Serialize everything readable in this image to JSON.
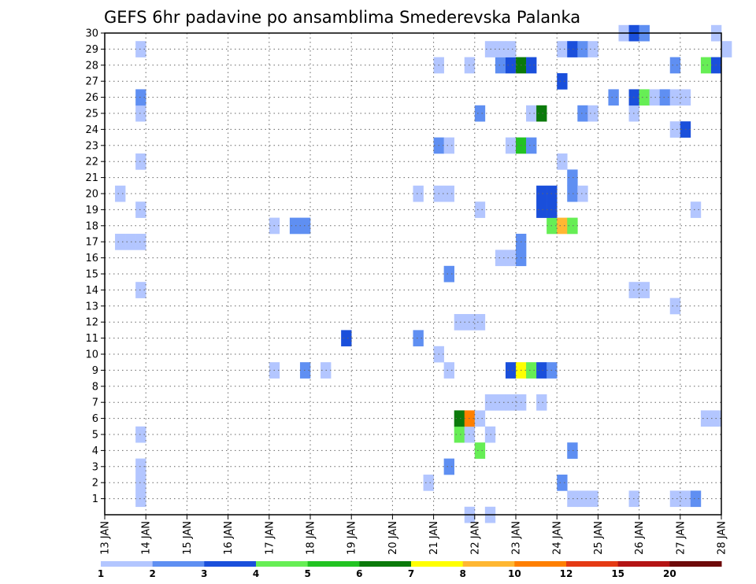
{
  "chart_data": {
    "type": "heatmap",
    "title": "GEFS 6hr padavine po ansamblima Smederevska Palanka",
    "xlabel": "",
    "ylabel": "",
    "x_ticks": [
      "13 JAN",
      "14 JAN",
      "15 JAN",
      "16 JAN",
      "17 JAN",
      "18 JAN",
      "19 JAN",
      "20 JAN",
      "21 JAN",
      "22 JAN",
      "23 JAN",
      "24 JAN",
      "25 JAN",
      "26 JAN",
      "27 JAN",
      "28 JAN"
    ],
    "y_ticks": [
      "1",
      "2",
      "3",
      "4",
      "5",
      "6",
      "7",
      "8",
      "9",
      "10",
      "11",
      "12",
      "13",
      "14",
      "15",
      "16",
      "17",
      "18",
      "19",
      "20",
      "21",
      "22",
      "23",
      "24",
      "25",
      "26",
      "27",
      "28",
      "29",
      "30"
    ],
    "ylim": [
      0,
      30
    ],
    "xlim_days": [
      0,
      15
    ],
    "colorbar": {
      "labels": [
        "1",
        "2",
        "3",
        "4",
        "5",
        "6",
        "7",
        "8",
        "10",
        "12",
        "15",
        "20"
      ],
      "colors": [
        "#b3c6ff",
        "#5f8ff2",
        "#1a4fdb",
        "#66ee55",
        "#22c322",
        "#0b7a0b",
        "#ffff00",
        "#ffb732",
        "#ff7f00",
        "#e53a14",
        "#b41414",
        "#6e0a0a"
      ]
    },
    "cells": [
      {
        "m": 1,
        "d": 0.75,
        "c": 0
      },
      {
        "m": 1,
        "d": 11.25,
        "c": 0
      },
      {
        "m": 1,
        "d": 11.5,
        "c": 0
      },
      {
        "m": 1,
        "d": 11.75,
        "c": 0
      },
      {
        "m": 1,
        "d": 12.75,
        "c": 0
      },
      {
        "m": 1,
        "d": 13.75,
        "c": 0
      },
      {
        "m": 1,
        "d": 14,
        "c": 0
      },
      {
        "m": 1,
        "d": 14.25,
        "c": 1
      },
      {
        "m": 2,
        "d": 0.75,
        "c": 0
      },
      {
        "m": 2,
        "d": 7.75,
        "c": 0
      },
      {
        "m": 2,
        "d": 11.0,
        "c": 1
      },
      {
        "m": 3,
        "d": 0.75,
        "c": 0
      },
      {
        "m": 3,
        "d": 8.25,
        "c": 1
      },
      {
        "m": 4,
        "d": 9.0,
        "c": 3
      },
      {
        "m": 4,
        "d": 11.25,
        "c": 1
      },
      {
        "m": 5,
        "d": 0.75,
        "c": 0
      },
      {
        "m": 5,
        "d": 8.5,
        "c": 3
      },
      {
        "m": 5,
        "d": 8.75,
        "c": 0
      },
      {
        "m": 5,
        "d": 9.25,
        "c": 0
      },
      {
        "m": 6,
        "d": 8.5,
        "c": 5
      },
      {
        "m": 6,
        "d": 8.75,
        "c": 8
      },
      {
        "m": 6,
        "d": 9.0,
        "c": 0
      },
      {
        "m": 6,
        "d": 14.5,
        "c": 0
      },
      {
        "m": 6,
        "d": 14.75,
        "c": 0
      },
      {
        "m": 7,
        "d": 9.25,
        "c": 0
      },
      {
        "m": 7,
        "d": 9.5,
        "c": 0
      },
      {
        "m": 7,
        "d": 9.75,
        "c": 0
      },
      {
        "m": 7,
        "d": 10.0,
        "c": 0
      },
      {
        "m": 7,
        "d": 10.5,
        "c": 0
      },
      {
        "m": 9,
        "d": 4.0,
        "c": 0
      },
      {
        "m": 9,
        "d": 4.75,
        "c": 1
      },
      {
        "m": 9,
        "d": 5.25,
        "c": 0
      },
      {
        "m": 9,
        "d": 8.25,
        "c": 0
      },
      {
        "m": 9,
        "d": 9.75,
        "c": 2
      },
      {
        "m": 9,
        "d": 10.0,
        "c": 6
      },
      {
        "m": 9,
        "d": 10.25,
        "c": 3
      },
      {
        "m": 9,
        "d": 10.5,
        "c": 2
      },
      {
        "m": 9,
        "d": 10.75,
        "c": 1
      },
      {
        "m": 10,
        "d": 8.0,
        "c": 0
      },
      {
        "m": 11,
        "d": 5.75,
        "c": 2
      },
      {
        "m": 11,
        "d": 7.5,
        "c": 1
      },
      {
        "m": 12,
        "d": 8.5,
        "c": 0
      },
      {
        "m": 12,
        "d": 8.75,
        "c": 0
      },
      {
        "m": 12,
        "d": 9.0,
        "c": 0
      },
      {
        "m": 13,
        "d": 13.75,
        "c": 0
      },
      {
        "m": 14,
        "d": 0.75,
        "c": 0
      },
      {
        "m": 14,
        "d": 12.75,
        "c": 0
      },
      {
        "m": 14,
        "d": 13.0,
        "c": 0
      },
      {
        "m": 15,
        "d": 8.25,
        "c": 1
      },
      {
        "m": 16,
        "d": 9.5,
        "c": 0
      },
      {
        "m": 16,
        "d": 9.75,
        "c": 0
      },
      {
        "m": 16,
        "d": 10.0,
        "c": 1
      },
      {
        "m": 17,
        "d": 0.25,
        "c": 0
      },
      {
        "m": 17,
        "d": 0.5,
        "c": 0
      },
      {
        "m": 17,
        "d": 0.75,
        "c": 0
      },
      {
        "m": 17,
        "d": 10.0,
        "c": 1
      },
      {
        "m": 18,
        "d": 4.0,
        "c": 0
      },
      {
        "m": 18,
        "d": 4.5,
        "c": 1
      },
      {
        "m": 18,
        "d": 4.75,
        "c": 1
      },
      {
        "m": 18,
        "d": 10.75,
        "c": 3
      },
      {
        "m": 18,
        "d": 11.0,
        "c": 7
      },
      {
        "m": 18,
        "d": 11.25,
        "c": 3
      },
      {
        "m": 19,
        "d": 0.75,
        "c": 0
      },
      {
        "m": 19,
        "d": 9.0,
        "c": 0
      },
      {
        "m": 19,
        "d": 10.75,
        "c": 2
      },
      {
        "m": 19,
        "d": 10.5,
        "c": 2
      },
      {
        "m": 19,
        "d": 14.25,
        "c": 0
      },
      {
        "m": 20,
        "d": 0.25,
        "c": 0
      },
      {
        "m": 20,
        "d": 7.5,
        "c": 0
      },
      {
        "m": 20,
        "d": 8.0,
        "c": 0
      },
      {
        "m": 20,
        "d": 8.25,
        "c": 0
      },
      {
        "m": 20,
        "d": 10.5,
        "c": 2
      },
      {
        "m": 20,
        "d": 10.75,
        "c": 2
      },
      {
        "m": 20,
        "d": 11.25,
        "c": 1
      },
      {
        "m": 20,
        "d": 11.5,
        "c": 0
      },
      {
        "m": 21,
        "d": 11.25,
        "c": 1
      },
      {
        "m": 22,
        "d": 0.75,
        "c": 0
      },
      {
        "m": 22,
        "d": 11.0,
        "c": 0
      },
      {
        "m": 23,
        "d": 8.0,
        "c": 1
      },
      {
        "m": 23,
        "d": 8.25,
        "c": 0
      },
      {
        "m": 23,
        "d": 9.75,
        "c": 0
      },
      {
        "m": 23,
        "d": 10.0,
        "c": 4
      },
      {
        "m": 23,
        "d": 10.25,
        "c": 1
      },
      {
        "m": 24,
        "d": 13.75,
        "c": 0
      },
      {
        "m": 24,
        "d": 14.0,
        "c": 2
      },
      {
        "m": 25,
        "d": 0.75,
        "c": 0
      },
      {
        "m": 25,
        "d": 9.0,
        "c": 1
      },
      {
        "m": 25,
        "d": 10.25,
        "c": 0
      },
      {
        "m": 25,
        "d": 10.5,
        "c": 5
      },
      {
        "m": 25,
        "d": 11.5,
        "c": 1
      },
      {
        "m": 25,
        "d": 11.75,
        "c": 0
      },
      {
        "m": 25,
        "d": 12.75,
        "c": 0
      },
      {
        "m": 26,
        "d": 0.75,
        "c": 1
      },
      {
        "m": 26,
        "d": 12.25,
        "c": 1
      },
      {
        "m": 26,
        "d": 12.75,
        "c": 2
      },
      {
        "m": 26,
        "d": 13.0,
        "c": 3
      },
      {
        "m": 26,
        "d": 13.25,
        "c": 0
      },
      {
        "m": 26,
        "d": 13.5,
        "c": 1
      },
      {
        "m": 26,
        "d": 13.75,
        "c": 0
      },
      {
        "m": 26,
        "d": 14.0,
        "c": 0
      },
      {
        "m": 27,
        "d": 11.0,
        "c": 2
      },
      {
        "m": 28,
        "d": 8.0,
        "c": 0
      },
      {
        "m": 28,
        "d": 8.75,
        "c": 0
      },
      {
        "m": 28,
        "d": 9.5,
        "c": 1
      },
      {
        "m": 28,
        "d": 9.75,
        "c": 2
      },
      {
        "m": 28,
        "d": 10.0,
        "c": 5
      },
      {
        "m": 28,
        "d": 10.25,
        "c": 2
      },
      {
        "m": 28,
        "d": 13.75,
        "c": 1
      },
      {
        "m": 28,
        "d": 14.5,
        "c": 3
      },
      {
        "m": 28,
        "d": 14.75,
        "c": 2
      },
      {
        "m": 29,
        "d": 0.75,
        "c": 0
      },
      {
        "m": 29,
        "d": 9.25,
        "c": 0
      },
      {
        "m": 29,
        "d": 9.5,
        "c": 0
      },
      {
        "m": 29,
        "d": 9.75,
        "c": 0
      },
      {
        "m": 29,
        "d": 11.0,
        "c": 0
      },
      {
        "m": 29,
        "d": 11.25,
        "c": 2
      },
      {
        "m": 29,
        "d": 11.5,
        "c": 1
      },
      {
        "m": 29,
        "d": 11.75,
        "c": 0
      },
      {
        "m": 29,
        "d": 15.0,
        "c": 0
      },
      {
        "m": 30,
        "d": 12.5,
        "c": 0
      },
      {
        "m": 30,
        "d": 12.75,
        "c": 2
      },
      {
        "m": 30,
        "d": 13.0,
        "c": 1
      },
      {
        "m": 30,
        "d": 14.75,
        "c": 0
      },
      {
        "m": 0,
        "d": 8.75,
        "c": 0
      },
      {
        "m": 0,
        "d": 9.25,
        "c": 0
      }
    ]
  }
}
